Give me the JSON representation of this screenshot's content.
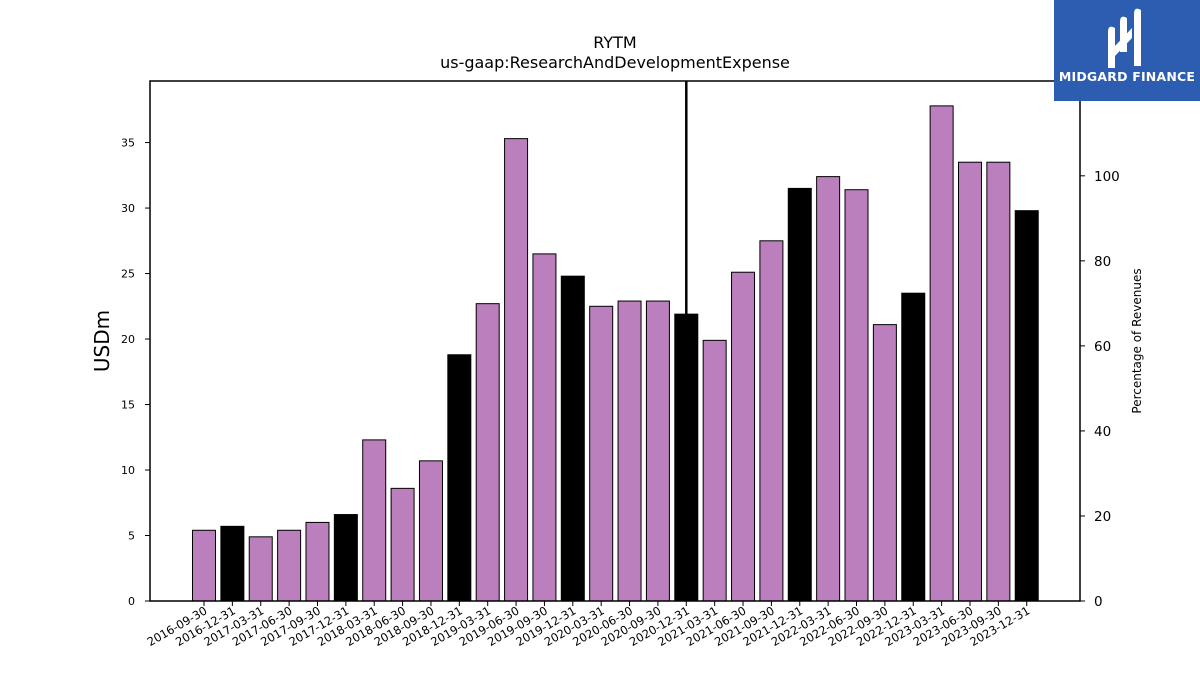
{
  "chart_data": {
    "type": "bar",
    "title": "RYTM",
    "subtitle": "us-gaap:ResearchAndDevelopmentExpense",
    "ylabel": "USDm",
    "y2label": "Percentage of Revenues",
    "ylim": [
      0,
      39.7
    ],
    "y2lim": [
      0,
      122.3
    ],
    "yticks": [
      0,
      5,
      10,
      15,
      20,
      25,
      30,
      35
    ],
    "y2ticks": [
      0,
      20,
      40,
      60,
      80,
      100
    ],
    "categories": [
      "2016-09-30",
      "2016-12-31",
      "2017-03-31",
      "2017-06-30",
      "2017-09-30",
      "2017-12-31",
      "2018-03-31",
      "2018-06-30",
      "2018-09-30",
      "2018-12-31",
      "2019-03-31",
      "2019-06-30",
      "2019-09-30",
      "2019-12-31",
      "2020-03-31",
      "2020-06-30",
      "2020-09-30",
      "2020-12-31",
      "2021-03-31",
      "2021-06-30",
      "2021-09-30",
      "2021-12-31",
      "2022-03-31",
      "2022-06-30",
      "2022-09-30",
      "2022-12-31",
      "2023-03-31",
      "2023-06-30",
      "2023-09-30",
      "2023-12-31"
    ],
    "values": [
      5.4,
      5.7,
      4.9,
      5.4,
      6.0,
      6.6,
      12.3,
      8.6,
      10.7,
      18.8,
      22.7,
      35.3,
      26.5,
      24.8,
      22.5,
      22.9,
      22.9,
      21.9,
      19.9,
      25.1,
      27.5,
      31.5,
      32.4,
      31.4,
      21.1,
      23.5,
      37.8,
      33.5,
      33.5,
      29.8
    ],
    "annual": [
      false,
      true,
      false,
      false,
      false,
      true,
      false,
      false,
      false,
      true,
      false,
      false,
      false,
      true,
      false,
      false,
      false,
      true,
      false,
      false,
      false,
      true,
      false,
      false,
      false,
      true,
      false,
      false,
      false,
      true
    ],
    "revenue_pct_line": {
      "category_index": 17,
      "values": [
        67.0,
        122.3
      ]
    },
    "colors": {
      "quarterly": "#bb7fbd",
      "annual": "#000000",
      "edge": "#000000"
    },
    "grid": false,
    "legend": "none"
  },
  "logo": {
    "text": "MIDGARD FINANCE",
    "background": "#2d5db0"
  }
}
